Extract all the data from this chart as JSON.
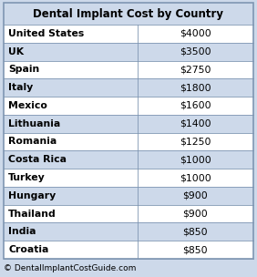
{
  "title": "Dental Implant Cost by Country",
  "countries": [
    "United States",
    "UK",
    "Spain",
    "Italy",
    "Mexico",
    "Lithuania",
    "Romania",
    "Costa Rica",
    "Turkey",
    "Hungary",
    "Thailand",
    "India",
    "Croatia"
  ],
  "costs": [
    "$4000",
    "$3500",
    "$2750",
    "$1800",
    "$1600",
    "$1400",
    "$1250",
    "$1000",
    "$1000",
    "$900",
    "$900",
    "$850",
    "$850"
  ],
  "footer": "© DentalImplantCostGuide.com",
  "bg_color": "#cdd9ea",
  "row_odd_color": "#ffffff",
  "row_even_color": "#cdd9ea",
  "border_color": "#7f96b2",
  "title_bg": "#cdd9ea",
  "title_fontsize": 8.5,
  "cell_fontsize": 7.8,
  "footer_fontsize": 6.5,
  "col_split": 0.535
}
